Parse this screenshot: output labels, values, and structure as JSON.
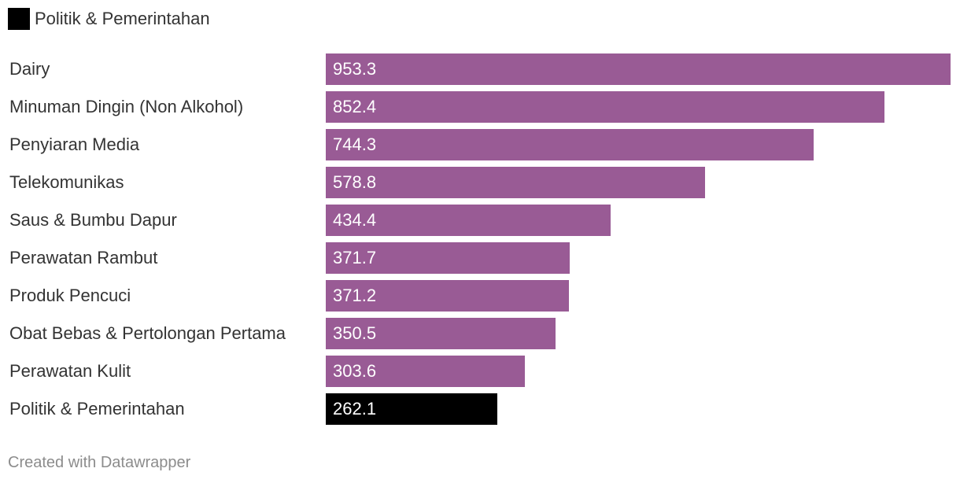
{
  "legend": {
    "label": "Politik & Pemerintahan",
    "color": "#000000"
  },
  "chart_data": {
    "type": "bar",
    "orientation": "horizontal",
    "categories": [
      "Dairy",
      "Minuman Dingin (Non Alkohol)",
      "Penyiaran Media",
      "Telekomunikas",
      "Saus & Bumbu Dapur",
      "Perawatan Rambut",
      "Produk Pencuci",
      "Obat Bebas & Pertolongan Pertama",
      "Perawatan Kulit",
      "Politik & Pemerintahan"
    ],
    "values": [
      953.3,
      852.4,
      744.3,
      578.8,
      434.4,
      371.7,
      371.2,
      350.5,
      303.6,
      262.1
    ],
    "value_labels": [
      "953.3",
      "852.4",
      "744.3",
      "578.8",
      "434.4",
      "371.7",
      "371.2",
      "350.5",
      "303.6",
      "262.1"
    ],
    "colors": [
      "#995b95",
      "#995b95",
      "#995b95",
      "#995b95",
      "#995b95",
      "#995b95",
      "#995b95",
      "#995b95",
      "#995b95",
      "#000000"
    ],
    "xlim": [
      0,
      953.3
    ],
    "grid": false,
    "legend_position": "top-left"
  },
  "footer": {
    "credit": "Created with Datawrapper"
  }
}
